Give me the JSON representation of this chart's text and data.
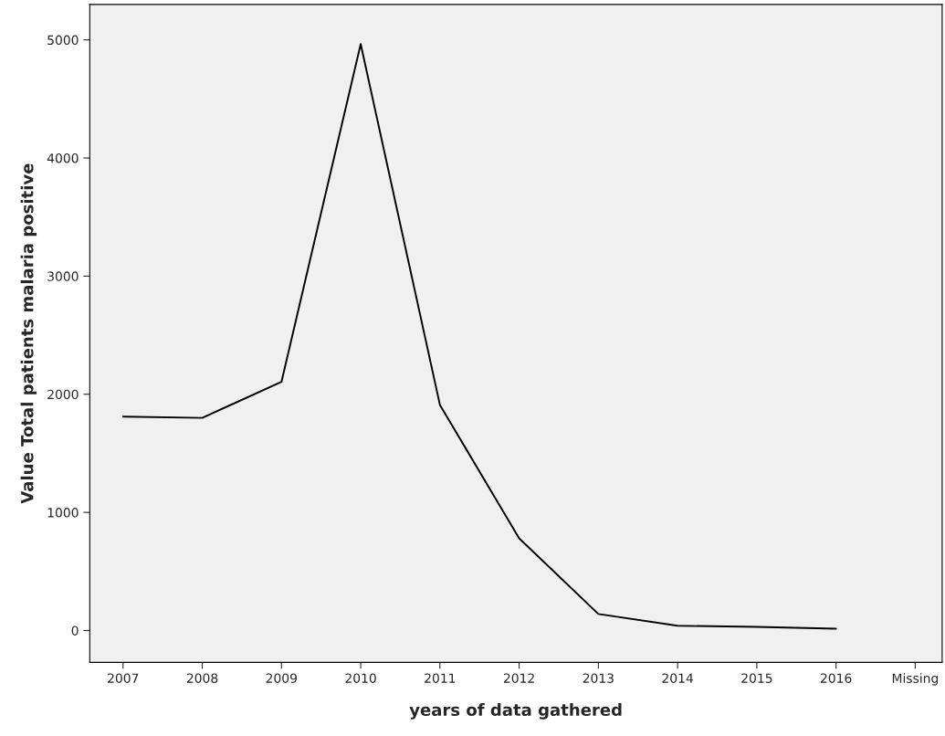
{
  "chart_data": {
    "type": "line",
    "xlabel": "years of data gathered",
    "ylabel": "Value Total patients malaria positive",
    "categories": [
      "2007",
      "2008",
      "2009",
      "2010",
      "2011",
      "2012",
      "2013",
      "2014",
      "2015",
      "2016",
      "Missing"
    ],
    "series": [
      {
        "color": "#000000",
        "values": [
          1810,
          1800,
          2105,
          4965,
          1910,
          780,
          140,
          40,
          30,
          15,
          null
        ]
      }
    ],
    "ylim": [
      -270,
      5300
    ],
    "yticks": [
      0,
      1000,
      2000,
      3000,
      4000,
      5000
    ],
    "grid": false,
    "legend": false,
    "marker": "none",
    "line_style": "solid"
  }
}
